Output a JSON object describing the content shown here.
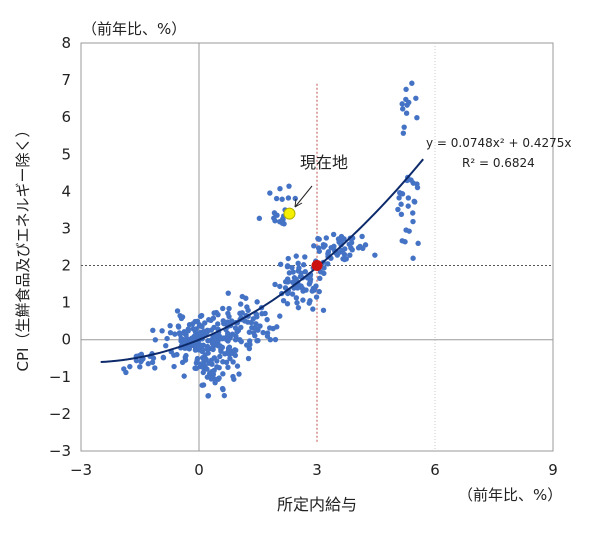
{
  "chart_data": {
    "type": "scatter",
    "title": "",
    "xlabel": "所定内給与",
    "ylabel": "CPI（生鮮食品及びエネルギー除く）",
    "x_unit": "（前年比、%）",
    "y_unit": "（前年比、%）",
    "xlim": [
      -3,
      9
    ],
    "ylim": [
      -3,
      8
    ],
    "xticks": [
      "−3",
      "0",
      "3",
      "6",
      "9"
    ],
    "yticks": [
      "−3",
      "−2",
      "−1",
      "0",
      "1",
      "2",
      "3",
      "4",
      "5",
      "6",
      "7",
      "8"
    ],
    "grid": false,
    "equation": "y = 0.0748x² + 0.4275x",
    "r_squared": "R² = 0.6824",
    "trend": {
      "a": 0.0748,
      "b": 0.4275,
      "c": 0,
      "x_from": -2.5,
      "x_to": 5.7
    },
    "vertical_ref_x": 3,
    "horizontal_ref_y": 2,
    "current": {
      "label": "現在地",
      "x": 2.3,
      "y": 3.4
    },
    "highlight": {
      "x": 3.0,
      "y": 2.0
    },
    "colors": {
      "points": "#4472c4",
      "trend": "#0d2a6b",
      "current": "#f5f000",
      "highlight": "#cc1010",
      "ref_v": "#c0504d"
    },
    "clusters": [
      {
        "x": 0.2,
        "y": -0.1,
        "sx": 0.75,
        "sy": 0.55,
        "n": 200
      },
      {
        "x": 1.3,
        "y": 0.45,
        "sx": 0.55,
        "sy": 0.45,
        "n": 60
      },
      {
        "x": 2.5,
        "y": 1.5,
        "sx": 0.45,
        "sy": 0.5,
        "n": 70
      },
      {
        "x": 3.6,
        "y": 2.4,
        "sx": 0.5,
        "sy": 0.35,
        "n": 50
      },
      {
        "x": 2.1,
        "y": 3.6,
        "sx": 0.35,
        "sy": 0.4,
        "n": 22
      },
      {
        "x": 5.3,
        "y": 3.5,
        "sx": 0.25,
        "sy": 0.9,
        "n": 25
      },
      {
        "x": 5.3,
        "y": 6.3,
        "sx": 0.15,
        "sy": 0.45,
        "n": 12
      },
      {
        "x": -1.5,
        "y": -0.6,
        "sx": 0.45,
        "sy": 0.25,
        "n": 18
      },
      {
        "x": 0.4,
        "y": -1.1,
        "sx": 0.3,
        "sy": 0.35,
        "n": 20
      }
    ]
  }
}
